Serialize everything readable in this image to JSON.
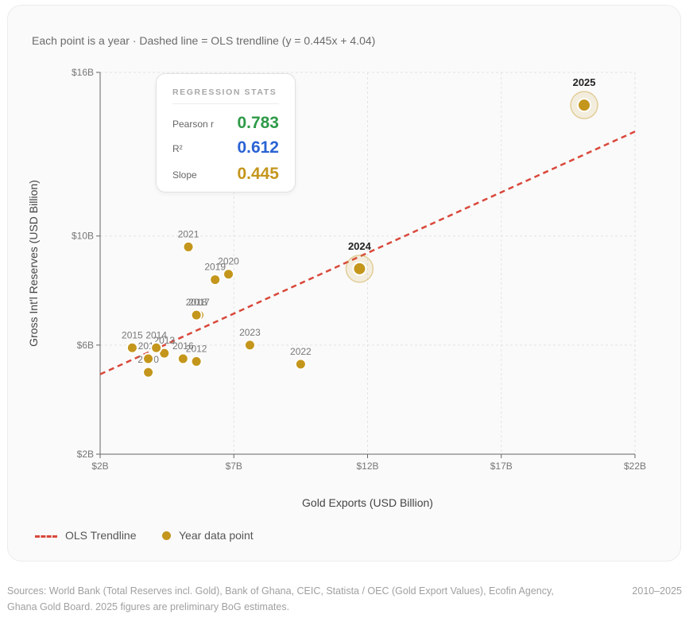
{
  "subtitle": "Each point is a year · Dashed line = OLS trendline (y = 0.445x + 4.04)",
  "stats": {
    "title": "REGRESSION STATS",
    "rows": [
      {
        "label": "Pearson r",
        "value": "0.783",
        "color": "#2e9a48"
      },
      {
        "label": "R²",
        "value": "0.612",
        "color": "#2a62d4"
      },
      {
        "label": "Slope",
        "value": "0.445",
        "color": "#c4961c"
      }
    ]
  },
  "legend": {
    "trend_label": "OLS Trendline",
    "point_label": "Year data point"
  },
  "footer": {
    "sources": "Sources: World Bank (Total Reserves incl. Gold), Bank of Ghana, CEIC, Statista / OEC (Gold Export Values), Ecofin Agency, Ghana Gold Board. 2025 figures are preliminary BoG estimates.",
    "period": "2010–2025"
  },
  "chart_data": {
    "type": "scatter",
    "xlabel": "Gold Exports (USD Billion)",
    "ylabel": "Gross Int'l Reserves (USD Billion)",
    "xlim": [
      2,
      22
    ],
    "ylim": [
      2,
      16
    ],
    "xticks": [
      2,
      7,
      12,
      17,
      22
    ],
    "xtick_labels": [
      "$2B",
      "$7B",
      "$12B",
      "$17B",
      "$22B"
    ],
    "yticks": [
      2,
      6,
      10,
      16
    ],
    "ytick_labels": [
      "$2B",
      "$6B",
      "$10B",
      "$16B"
    ],
    "grid": true,
    "legend_position": "bottom-left",
    "trendline": {
      "slope": 0.445,
      "intercept": 4.04
    },
    "point_color": "#c4961c",
    "trend_color": "#d9483b",
    "points": [
      {
        "year": "2010",
        "x": 3.8,
        "y": 5.0
      },
      {
        "year": "2011",
        "x": 3.8,
        "y": 5.5
      },
      {
        "year": "2012",
        "x": 5.6,
        "y": 5.4
      },
      {
        "year": "2013",
        "x": 4.4,
        "y": 5.7
      },
      {
        "year": "2014",
        "x": 4.1,
        "y": 5.9
      },
      {
        "year": "2015",
        "x": 3.2,
        "y": 5.9
      },
      {
        "year": "2016",
        "x": 5.1,
        "y": 5.5
      },
      {
        "year": "2017",
        "x": 5.7,
        "y": 7.1
      },
      {
        "year": "2018",
        "x": 5.6,
        "y": 7.1
      },
      {
        "year": "2019",
        "x": 6.3,
        "y": 8.4
      },
      {
        "year": "2020",
        "x": 6.8,
        "y": 8.6
      },
      {
        "year": "2021",
        "x": 5.3,
        "y": 9.6
      },
      {
        "year": "2022",
        "x": 9.5,
        "y": 5.3
      },
      {
        "year": "2023",
        "x": 7.6,
        "y": 6.0
      },
      {
        "year": "2024",
        "x": 11.7,
        "y": 8.8,
        "highlight": true
      },
      {
        "year": "2025",
        "x": 20.1,
        "y": 14.8,
        "highlight": true
      }
    ]
  }
}
